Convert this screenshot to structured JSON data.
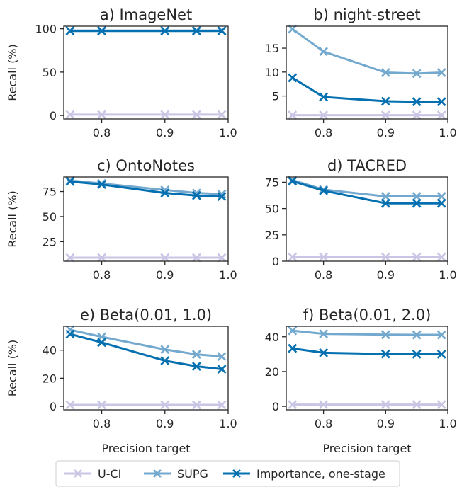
{
  "colors": {
    "U-CI": "#c9c5e4",
    "SUPG": "#74a9cf",
    "Importance, one-stage": "#0570b0",
    "axis": "#262626"
  },
  "legend": {
    "placement": "bottom-center",
    "entries": [
      "U-CI",
      "SUPG",
      "Importance, one-stage"
    ]
  },
  "chart_data": [
    {
      "type": "line",
      "title": "a) ImageNet",
      "xlabel": "",
      "ylabel": "Recall (%)",
      "xlim": [
        0.74,
        1.0
      ],
      "ylim": [
        -4,
        103
      ],
      "xticks": [
        "0.8",
        "0.9",
        "1.0"
      ],
      "yticks": [
        "0",
        "50",
        "100"
      ],
      "x": [
        0.75,
        0.8,
        0.9,
        0.95,
        0.99
      ],
      "series": [
        {
          "name": "U-CI",
          "values": [
            1,
            1,
            1,
            1,
            1
          ]
        },
        {
          "name": "SUPG",
          "values": [
            98,
            98,
            98,
            98,
            98
          ]
        },
        {
          "name": "Importance, one-stage",
          "values": [
            97.5,
            97.5,
            97.5,
            97.5,
            97.5
          ]
        }
      ]
    },
    {
      "type": "line",
      "title": "b) night-street",
      "xlabel": "",
      "ylabel": "",
      "xlim": [
        0.74,
        1.0
      ],
      "ylim": [
        0.2,
        19.6
      ],
      "xticks": [
        "0.8",
        "0.9",
        "1.0"
      ],
      "yticks": [
        "5",
        "10",
        "15"
      ],
      "x": [
        0.75,
        0.8,
        0.9,
        0.95,
        0.99
      ],
      "series": [
        {
          "name": "U-CI",
          "values": [
            1,
            1,
            1,
            1,
            1
          ]
        },
        {
          "name": "SUPG",
          "values": [
            19,
            14.3,
            9.9,
            9.7,
            9.9
          ]
        },
        {
          "name": "Importance, one-stage",
          "values": [
            8.8,
            4.8,
            3.9,
            3.8,
            3.8
          ]
        }
      ]
    },
    {
      "type": "line",
      "title": "c) OntoNotes",
      "xlabel": "",
      "ylabel": "Recall (%)",
      "xlim": [
        0.74,
        1.0
      ],
      "ylim": [
        5.5,
        89.5
      ],
      "xticks": [
        "0.8",
        "0.9",
        "1.0"
      ],
      "yticks": [
        "25",
        "50",
        "75"
      ],
      "x": [
        0.75,
        0.8,
        0.9,
        0.95,
        0.99
      ],
      "series": [
        {
          "name": "U-CI",
          "values": [
            9,
            9,
            9,
            9,
            9
          ]
        },
        {
          "name": "SUPG",
          "values": [
            86,
            83,
            76.5,
            73.5,
            72.5
          ]
        },
        {
          "name": "Importance, one-stage",
          "values": [
            85,
            82,
            73.5,
            71,
            70
          ]
        }
      ]
    },
    {
      "type": "line",
      "title": "d) TACRED",
      "xlabel": "",
      "ylabel": "",
      "xlim": [
        0.74,
        1.0
      ],
      "ylim": [
        0,
        80
      ],
      "xticks": [
        "0.8",
        "0.9",
        "1.0"
      ],
      "yticks": [
        "0",
        "25",
        "50",
        "75"
      ],
      "x": [
        0.75,
        0.8,
        0.9,
        0.95,
        0.99
      ],
      "series": [
        {
          "name": "U-CI",
          "values": [
            4,
            4,
            4,
            4,
            4
          ]
        },
        {
          "name": "SUPG",
          "values": [
            77,
            68,
            61.5,
            61.5,
            61.5
          ]
        },
        {
          "name": "Importance, one-stage",
          "values": [
            76,
            67,
            55,
            55,
            55
          ]
        }
      ]
    },
    {
      "type": "line",
      "title": "e) Beta(0.01, 1.0)",
      "xlabel": "Precision target",
      "ylabel": "Recall (%)",
      "xlim": [
        0.74,
        1.0
      ],
      "ylim": [
        -2.5,
        57
      ],
      "xticks": [
        "0.8",
        "0.9",
        "1.0"
      ],
      "yticks": [
        "0",
        "20",
        "40"
      ],
      "x": [
        0.75,
        0.8,
        0.9,
        0.95,
        0.99
      ],
      "series": [
        {
          "name": "U-CI",
          "values": [
            1,
            1,
            1,
            1,
            1
          ]
        },
        {
          "name": "SUPG",
          "values": [
            54.5,
            49.5,
            40.5,
            37,
            35.5
          ]
        },
        {
          "name": "Importance, one-stage",
          "values": [
            51.5,
            45.5,
            32.5,
            28.5,
            26.5
          ]
        }
      ]
    },
    {
      "type": "line",
      "title": "f) Beta(0.01, 2.0)",
      "xlabel": "Precision target",
      "ylabel": "",
      "xlim": [
        0.74,
        1.0
      ],
      "ylim": [
        -2,
        46
      ],
      "xticks": [
        "0.8",
        "0.9",
        "1.0"
      ],
      "yticks": [
        "0",
        "20",
        "40"
      ],
      "x": [
        0.75,
        0.8,
        0.9,
        0.95,
        0.99
      ],
      "series": [
        {
          "name": "U-CI",
          "values": [
            1,
            1,
            1,
            1,
            1
          ]
        },
        {
          "name": "SUPG",
          "values": [
            43.5,
            41.7,
            41.2,
            41.1,
            41.1
          ]
        },
        {
          "name": "Importance, one-stage",
          "values": [
            33.3,
            30.8,
            30.1,
            30,
            30
          ]
        }
      ]
    }
  ]
}
